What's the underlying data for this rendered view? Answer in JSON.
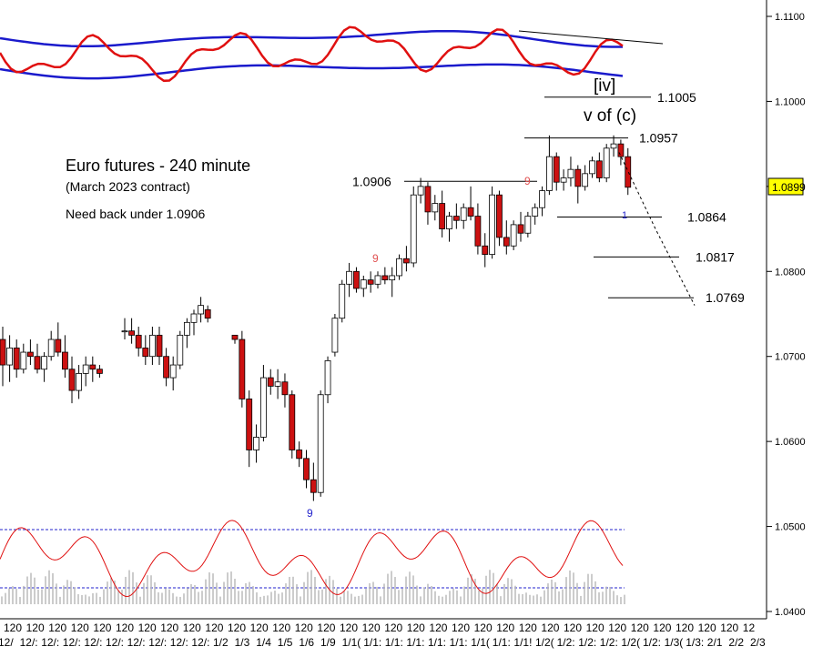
{
  "chart_data": {
    "type": "candlestick",
    "title": "Euro futures - 240 minute",
    "subtitle": "(March 2023 contract)",
    "note": "Need back under 1.0906",
    "ylim": [
      1.04,
      1.1115
    ],
    "y_ticks": [
      "1.0400",
      "1.0500",
      "1.0600",
      "1.0700",
      "1.0800",
      "1.0900",
      "1.1000",
      "1.1100"
    ],
    "y_tick_values": [
      1.04,
      1.05,
      1.06,
      1.07,
      1.08,
      1.09,
      1.1,
      1.11
    ],
    "last_price": "1.0899",
    "last_price_value": 1.0899,
    "x_tick_top": [
      "120",
      "120",
      "120",
      "120",
      "120",
      "120",
      "120",
      "120",
      "120",
      "120",
      "120",
      "120",
      "120",
      "120",
      "120",
      "120",
      "120",
      "120",
      "120",
      "120",
      "120",
      "120",
      "120",
      "120",
      "120",
      "120",
      "120",
      "120",
      "120",
      "120",
      "120",
      "120",
      "120",
      "12"
    ],
    "x_tick_bottom": [
      "12/",
      "12/:",
      "12/:",
      "12/:",
      "12/:",
      "12/:",
      "12/:",
      "12/:",
      "12/:",
      "12/:",
      "1/2",
      "1/3",
      "1/4",
      "1/5",
      "1/6",
      "1/9",
      "1/1(",
      "1/1:",
      "1/1:",
      "1/1:",
      "1/1:",
      "1/1:",
      "1/1(",
      "1/1:",
      "1/1!",
      "1/2(",
      "1/2:",
      "1/2:",
      "1/2:",
      "1/2(",
      "1/2:",
      "1/3(",
      "1/3:",
      "2/1",
      "2/2",
      "2/3"
    ],
    "levels": [
      {
        "label": "1.1005",
        "value": 1.1005
      },
      {
        "label": "1.0957",
        "value": 1.0957
      },
      {
        "label": "1.0906",
        "value": 1.0906
      },
      {
        "label": "1.0864",
        "value": 1.0864
      },
      {
        "label": "1.0817",
        "value": 1.0817
      },
      {
        "label": "1.0769",
        "value": 1.0769
      }
    ],
    "wave_labels": [
      "[iv]",
      "v of (c)"
    ],
    "counts": [
      {
        "text": "9",
        "color": "#e05050"
      },
      {
        "text": "9",
        "color": "#e05050"
      },
      {
        "text": "9",
        "color": "#2222cc"
      },
      {
        "text": "1",
        "color": "#2222cc"
      }
    ],
    "candles": [
      [
        1.072,
        1.0735,
        1.0665,
        1.069
      ],
      [
        1.069,
        1.0725,
        1.067,
        1.071
      ],
      [
        1.071,
        1.072,
        1.0675,
        1.0685
      ],
      [
        1.0685,
        1.0715,
        1.068,
        1.0705
      ],
      [
        1.0705,
        1.072,
        1.069,
        1.07
      ],
      [
        1.07,
        1.0715,
        1.068,
        1.0685
      ],
      [
        1.0685,
        1.0705,
        1.067,
        1.07
      ],
      [
        1.07,
        1.073,
        1.0695,
        1.072
      ],
      [
        1.072,
        1.074,
        1.07,
        1.0705
      ],
      [
        1.0705,
        1.0725,
        1.0675,
        1.0685
      ],
      [
        1.0685,
        1.07,
        1.0645,
        1.066
      ],
      [
        1.066,
        1.069,
        1.065,
        1.068
      ],
      [
        1.068,
        1.07,
        1.0665,
        1.069
      ],
      [
        1.069,
        1.07,
        1.067,
        1.0685
      ],
      [
        1.0685,
        1.069,
        1.0675,
        1.068
      ],
      [
        1.073,
        1.0745,
        1.072,
        1.073
      ],
      [
        1.073,
        1.0745,
        1.0715,
        1.0725
      ],
      [
        1.0725,
        1.0735,
        1.07,
        1.071
      ],
      [
        1.071,
        1.0725,
        1.069,
        1.07
      ],
      [
        1.07,
        1.0735,
        1.069,
        1.0725
      ],
      [
        1.0725,
        1.0735,
        1.069,
        1.07
      ],
      [
        1.07,
        1.071,
        1.0665,
        1.0675
      ],
      [
        1.0675,
        1.07,
        1.066,
        1.069
      ],
      [
        1.069,
        1.073,
        1.0685,
        1.0725
      ],
      [
        1.0725,
        1.0745,
        1.071,
        1.074
      ],
      [
        1.074,
        1.0755,
        1.0725,
        1.075
      ],
      [
        1.075,
        1.077,
        1.074,
        1.076
      ],
      [
        1.0755,
        1.076,
        1.074,
        1.0745
      ],
      [
        1.0725,
        1.072,
        1.0715,
        1.072
      ],
      [
        1.072,
        1.073,
        1.064,
        1.065
      ],
      [
        1.065,
        1.066,
        1.057,
        1.059
      ],
      [
        1.059,
        1.062,
        1.0575,
        1.0605
      ],
      [
        1.0605,
        1.069,
        1.06,
        1.0675
      ],
      [
        1.0675,
        1.0685,
        1.0655,
        1.0665
      ],
      [
        1.0665,
        1.0685,
        1.065,
        1.067
      ],
      [
        1.067,
        1.068,
        1.064,
        1.0655
      ],
      [
        1.0655,
        1.066,
        1.058,
        1.059
      ],
      [
        1.059,
        1.06,
        1.057,
        1.058
      ],
      [
        1.058,
        1.059,
        1.0545,
        1.0555
      ],
      [
        1.0555,
        1.0575,
        1.053,
        1.054
      ],
      [
        1.054,
        1.066,
        1.0535,
        1.0655
      ],
      [
        1.0655,
        1.07,
        1.0645,
        1.0695
      ],
      [
        1.0705,
        1.075,
        1.07,
        1.0745
      ],
      [
        1.0745,
        1.079,
        1.074,
        1.0785
      ],
      [
        1.0785,
        1.081,
        1.077,
        1.08
      ],
      [
        1.08,
        1.0805,
        1.0775,
        1.078
      ],
      [
        1.078,
        1.0795,
        1.077,
        1.079
      ],
      [
        1.079,
        1.08,
        1.0775,
        1.0785
      ],
      [
        1.0785,
        1.08,
        1.078,
        1.0795
      ],
      [
        1.0795,
        1.0805,
        1.0785,
        1.079
      ],
      [
        1.079,
        1.0805,
        1.077,
        1.0795
      ],
      [
        1.0795,
        1.082,
        1.079,
        1.0815
      ],
      [
        1.0815,
        1.083,
        1.08,
        1.081
      ],
      [
        1.081,
        1.09,
        1.0805,
        1.089
      ],
      [
        1.089,
        1.091,
        1.088,
        1.09
      ],
      [
        1.09,
        1.0905,
        1.0855,
        1.087
      ],
      [
        1.087,
        1.089,
        1.086,
        1.088
      ],
      [
        1.088,
        1.0895,
        1.084,
        1.085
      ],
      [
        1.085,
        1.087,
        1.0835,
        1.0865
      ],
      [
        1.0865,
        1.088,
        1.085,
        1.086
      ],
      [
        1.086,
        1.088,
        1.085,
        1.0875
      ],
      [
        1.0875,
        1.09,
        1.086,
        1.0865
      ],
      [
        1.0865,
        1.088,
        1.082,
        1.083
      ],
      [
        1.083,
        1.0845,
        1.0805,
        1.082
      ],
      [
        1.082,
        1.09,
        1.0815,
        1.089
      ],
      [
        1.089,
        1.0895,
        1.083,
        1.084
      ],
      [
        1.084,
        1.086,
        1.082,
        1.083
      ],
      [
        1.083,
        1.086,
        1.0825,
        1.0855
      ],
      [
        1.0855,
        1.087,
        1.0835,
        1.0845
      ],
      [
        1.0845,
        1.087,
        1.084,
        1.0865
      ],
      [
        1.0865,
        1.088,
        1.0855,
        1.0875
      ],
      [
        1.0875,
        1.09,
        1.0865,
        1.0895
      ],
      [
        1.0895,
        1.096,
        1.089,
        1.0935
      ],
      [
        1.0935,
        1.094,
        1.0895,
        1.0905
      ],
      [
        1.0905,
        1.092,
        1.0895,
        1.091
      ],
      [
        1.091,
        1.0935,
        1.09,
        1.092
      ],
      [
        1.092,
        1.0925,
        1.088,
        1.09
      ],
      [
        1.09,
        1.0925,
        1.0895,
        1.0915
      ],
      [
        1.0915,
        1.0935,
        1.091,
        1.093
      ],
      [
        1.093,
        1.094,
        1.0905,
        1.091
      ],
      [
        1.091,
        1.095,
        1.0905,
        1.0945
      ],
      [
        1.0945,
        1.096,
        1.0935,
        1.095
      ],
      [
        1.095,
        1.0955,
        1.0925,
        1.0935
      ],
      [
        1.0935,
        1.0945,
        1.089,
        1.0899
      ]
    ]
  }
}
